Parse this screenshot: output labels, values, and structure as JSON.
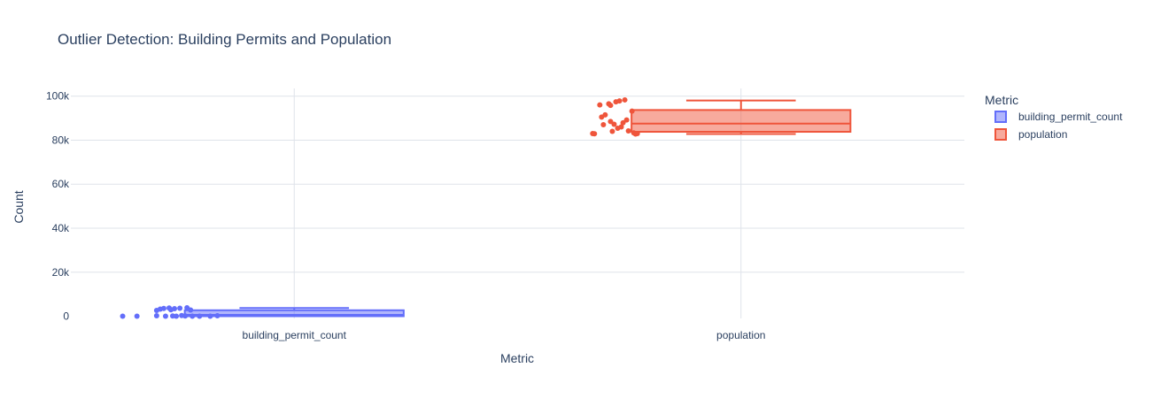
{
  "chart_data": {
    "type": "box",
    "title": "Outlier Detection: Building Permits and Population",
    "xlabel": "Metric",
    "ylabel": "Count",
    "ylim": [
      -1000,
      103500
    ],
    "y_ticks": [
      0,
      20000,
      40000,
      60000,
      80000,
      100000
    ],
    "y_tick_labels": [
      "0",
      "20k",
      "40k",
      "60k",
      "80k",
      "100k"
    ],
    "categories": [
      "building_permit_count",
      "population"
    ],
    "grid": true,
    "legend": {
      "title": "Metric",
      "position": "top-right"
    },
    "series": [
      {
        "name": "building_permit_count",
        "color": "#636efa",
        "box": {
          "min": 0,
          "q1": 0,
          "median": 600,
          "q3": 2700,
          "max": 3700
        },
        "points": [
          {
            "y": 0,
            "jitter": -0.96
          },
          {
            "y": 0,
            "jitter": -0.88
          },
          {
            "y": 200,
            "jitter": -0.77
          },
          {
            "y": 2600,
            "jitter": -0.77
          },
          {
            "y": 3200,
            "jitter": -0.75
          },
          {
            "y": 3500,
            "jitter": -0.73
          },
          {
            "y": 0,
            "jitter": -0.72
          },
          {
            "y": 3700,
            "jitter": -0.7
          },
          {
            "y": 2900,
            "jitter": -0.69
          },
          {
            "y": 100,
            "jitter": -0.68
          },
          {
            "y": 3400,
            "jitter": -0.67
          },
          {
            "y": 0,
            "jitter": -0.66
          },
          {
            "y": 3600,
            "jitter": -0.64
          },
          {
            "y": 300,
            "jitter": -0.63
          },
          {
            "y": 100,
            "jitter": -0.61
          },
          {
            "y": 3800,
            "jitter": -0.6
          },
          {
            "y": 2800,
            "jitter": -0.58
          },
          {
            "y": 0,
            "jitter": -0.57
          },
          {
            "y": 0,
            "jitter": -0.53
          },
          {
            "y": 0,
            "jitter": -0.47
          },
          {
            "y": 200,
            "jitter": -0.43
          }
        ]
      },
      {
        "name": "population",
        "color": "#ef553b",
        "box": {
          "min": 82800,
          "q1": 83800,
          "median": 87500,
          "q3": 93700,
          "max": 98000
        },
        "points": [
          {
            "y": 83000,
            "jitter": -0.83
          },
          {
            "y": 82900,
            "jitter": -0.82
          },
          {
            "y": 96000,
            "jitter": -0.79
          },
          {
            "y": 90500,
            "jitter": -0.78
          },
          {
            "y": 87000,
            "jitter": -0.77
          },
          {
            "y": 91500,
            "jitter": -0.76
          },
          {
            "y": 96500,
            "jitter": -0.74
          },
          {
            "y": 95800,
            "jitter": -0.73
          },
          {
            "y": 88500,
            "jitter": -0.73
          },
          {
            "y": 84000,
            "jitter": -0.72
          },
          {
            "y": 87200,
            "jitter": -0.71
          },
          {
            "y": 97400,
            "jitter": -0.7
          },
          {
            "y": 85400,
            "jitter": -0.69
          },
          {
            "y": 97800,
            "jitter": -0.68
          },
          {
            "y": 86000,
            "jitter": -0.67
          },
          {
            "y": 87900,
            "jitter": -0.66
          },
          {
            "y": 98300,
            "jitter": -0.65
          },
          {
            "y": 89200,
            "jitter": -0.64
          },
          {
            "y": 84200,
            "jitter": -0.63
          },
          {
            "y": 93200,
            "jitter": -0.61
          },
          {
            "y": 83300,
            "jitter": -0.6
          },
          {
            "y": 82800,
            "jitter": -0.59
          },
          {
            "y": 83000,
            "jitter": -0.58
          }
        ]
      }
    ]
  }
}
